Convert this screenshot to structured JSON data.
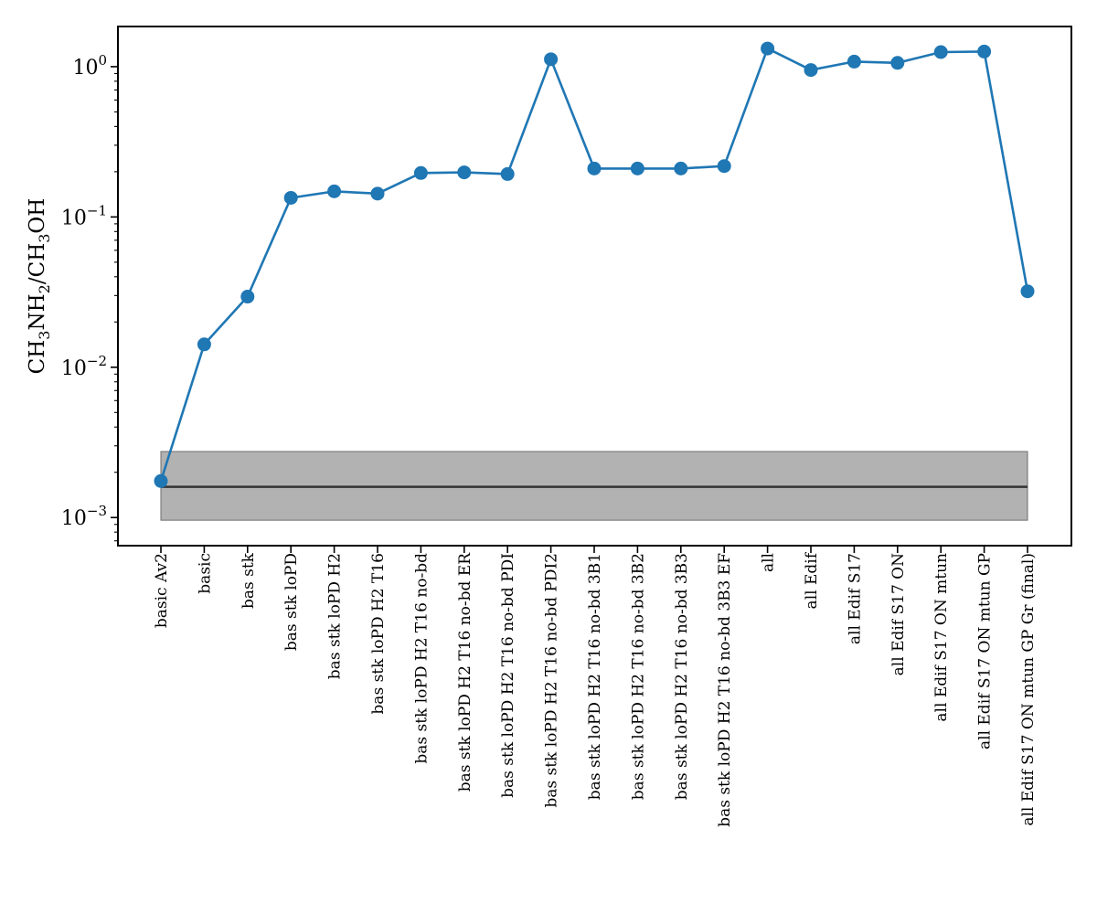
{
  "chart_data": {
    "type": "line",
    "ylabel": {
      "base": "CH",
      "sub1": "3",
      "mid1": "NH",
      "sub2": "2",
      "mid2": "/CH",
      "sub3": "3",
      "end": "OH"
    },
    "yscale": "log",
    "ylim": [
      0.00065,
      1.85
    ],
    "yticks": [
      {
        "value": 0.001,
        "base": "10",
        "exp": "−3"
      },
      {
        "value": 0.01,
        "base": "10",
        "exp": "−2"
      },
      {
        "value": 0.1,
        "base": "10",
        "exp": "−1"
      },
      {
        "value": 1,
        "base": "10",
        "exp": "0"
      }
    ],
    "categories": [
      "basic Av2",
      "basic",
      "bas stk",
      "bas stk loPD",
      "bas stk loPD H2",
      "bas stk loPD H2 T16",
      "bas stk loPD H2 T16 no-bd",
      "bas stk loPD H2 T16 no-bd ER",
      "bas stk loPD H2 T16 no-bd PDI",
      "bas stk loPD H2 T16 no-bd PDI2",
      "bas stk loPD H2 T16 no-bd 3B1",
      "bas stk loPD H2 T16 no-bd 3B2",
      "bas stk loPD H2 T16 no-bd 3B3",
      "bas stk loPD H2 T16 no-bd 3B3 EF",
      "all",
      "all Edif",
      "all Edif S17",
      "all Edif S17 ON",
      "all Edif S17 ON mtun",
      "all Edif S17 ON mtun GP",
      "all Edif S17 ON mtun GP Gr (final)"
    ],
    "series": [
      {
        "values": [
          0.00175,
          0.0142,
          0.0295,
          0.134,
          0.148,
          0.143,
          0.196,
          0.198,
          0.193,
          1.12,
          0.21,
          0.21,
          0.21,
          0.218,
          1.32,
          0.95,
          1.08,
          1.06,
          1.25,
          1.26,
          0.032
        ],
        "color": "#1f77b4"
      }
    ],
    "observed": {
      "value": 0.0016,
      "low": 0.00096,
      "high": 0.00275,
      "band_color": "#b2b2b2",
      "line_color": "#333333"
    },
    "grid": false
  }
}
